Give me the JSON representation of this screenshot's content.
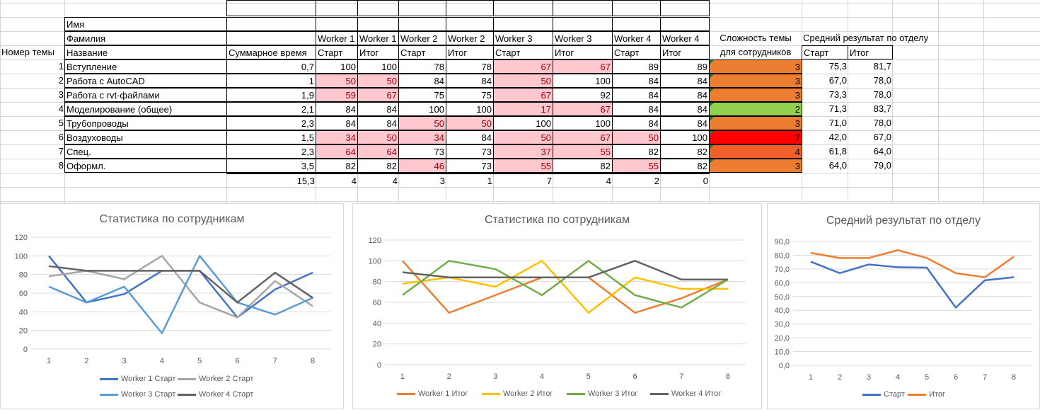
{
  "table": {
    "row_name_label": "Имя",
    "row_surname_label": "Фамилия",
    "col_topic_num": "Номер темы",
    "col_title": "Название",
    "col_total_time": "Суммарное время",
    "worker_headers": [
      "Worker 1",
      "Worker 1",
      "Worker 2",
      "Worker 2",
      "Worker 3",
      "Worker 3",
      "Worker 4",
      "Worker 4"
    ],
    "stage_headers": [
      "Старт",
      "Итог",
      "Старт",
      "Итог",
      "Старт",
      "Итог",
      "Старт",
      "Итог"
    ],
    "difficulty_header_1": "Сложность темы",
    "difficulty_header_2": "для сотрудников",
    "avg_header": "Средний результат по отделу",
    "avg_subheaders": [
      "Старт",
      "Итог"
    ],
    "rows": [
      {
        "num": "1",
        "title": "Вступление",
        "time": "0,7",
        "scores": [
          100,
          100,
          78,
          78,
          67,
          67,
          89,
          89
        ],
        "difficulty": "3",
        "avg": [
          "75,3",
          "81,7"
        ]
      },
      {
        "num": "2",
        "title": "Работа с AutoCAD",
        "time": "1",
        "scores": [
          50,
          50,
          84,
          84,
          50,
          100,
          84,
          84
        ],
        "difficulty": "3",
        "avg": [
          "67,0",
          "78,0"
        ]
      },
      {
        "num": "3",
        "title": "Работа с rvt-файлами",
        "time": "1,9",
        "scores": [
          59,
          67,
          75,
          75,
          67,
          92,
          84,
          84
        ],
        "difficulty": "3",
        "avg": [
          "73,3",
          "78,0"
        ]
      },
      {
        "num": "4",
        "title": "Моделирование (общее)",
        "time": "2,1",
        "scores": [
          84,
          84,
          100,
          100,
          17,
          67,
          84,
          84
        ],
        "difficulty": "2",
        "avg": [
          "71,3",
          "83,7"
        ]
      },
      {
        "num": "5",
        "title": "Трубопроводы",
        "time": "2,3",
        "scores": [
          84,
          84,
          50,
          50,
          100,
          100,
          84,
          84
        ],
        "difficulty": "3",
        "avg": [
          "71,0",
          "78,0"
        ]
      },
      {
        "num": "6",
        "title": "Воздуховоды",
        "time": "1,5",
        "scores": [
          34,
          50,
          34,
          84,
          50,
          67,
          50,
          100
        ],
        "difficulty": "7",
        "avg": [
          "42,0",
          "67,0"
        ]
      },
      {
        "num": "7",
        "title": "Спец.",
        "time": "2,3",
        "scores": [
          64,
          64,
          73,
          73,
          37,
          55,
          82,
          82
        ],
        "difficulty": "4",
        "avg": [
          "61,8",
          "64,0"
        ]
      },
      {
        "num": "8",
        "title": "Оформл.",
        "time": "3,5",
        "scores": [
          82,
          82,
          46,
          73,
          55,
          82,
          55,
          82
        ],
        "difficulty": "3",
        "avg": [
          "64,0",
          "79,0"
        ]
      }
    ],
    "totals": {
      "time": "15,3",
      "counts": [
        "4",
        "4",
        "3",
        "1",
        "7",
        "4",
        "2",
        "0"
      ]
    },
    "difficulty_colors": {
      "2": "#92d050",
      "3": "#ed7d31",
      "4": "#f0602a",
      "7": "#ff0000"
    },
    "low_threshold": 70
  },
  "chart_data": [
    {
      "type": "line",
      "title": "Статистика по сотрудникам",
      "categories": [
        "1",
        "2",
        "3",
        "4",
        "5",
        "6",
        "7",
        "8"
      ],
      "ylim": [
        0,
        120
      ],
      "yticks": [
        "0",
        "20",
        "40",
        "60",
        "80",
        "100",
        "120"
      ],
      "series": [
        {
          "name": "Worker 1 Старт",
          "color": "#4472c4",
          "values": [
            100,
            50,
            59,
            84,
            84,
            34,
            64,
            82
          ]
        },
        {
          "name": "Worker 2 Старт",
          "color": "#a5a5a5",
          "values": [
            78,
            84,
            75,
            100,
            50,
            34,
            73,
            46
          ]
        },
        {
          "name": "Worker 3 Старт",
          "color": "#5b9bd5",
          "values": [
            67,
            50,
            67,
            17,
            100,
            50,
            37,
            55
          ]
        },
        {
          "name": "Worker 4 Старт",
          "color": "#636363",
          "values": [
            89,
            84,
            84,
            84,
            84,
            50,
            82,
            55
          ]
        }
      ]
    },
    {
      "type": "line",
      "title": "Статистика по сотрудникам",
      "categories": [
        "1",
        "2",
        "3",
        "4",
        "5",
        "6",
        "7",
        "8"
      ],
      "ylim": [
        0,
        120
      ],
      "yticks": [
        "0",
        "20",
        "40",
        "60",
        "80",
        "100",
        "120"
      ],
      "series": [
        {
          "name": "Worker 1 Итог",
          "color": "#ed7d31",
          "values": [
            100,
            50,
            67,
            84,
            84,
            50,
            64,
            82
          ]
        },
        {
          "name": "Worker 2 Итог",
          "color": "#ffc000",
          "values": [
            78,
            84,
            75,
            100,
            50,
            84,
            73,
            73
          ]
        },
        {
          "name": "Worker 3 Итог",
          "color": "#70ad47",
          "values": [
            67,
            100,
            92,
            67,
            100,
            67,
            55,
            82
          ]
        },
        {
          "name": "Worker 4 Итог",
          "color": "#636363",
          "values": [
            89,
            84,
            84,
            84,
            84,
            100,
            82,
            82
          ]
        }
      ]
    },
    {
      "type": "line",
      "title": "Средний результат по отделу",
      "categories": [
        "1",
        "2",
        "3",
        "4",
        "5",
        "6",
        "7",
        "8"
      ],
      "ylim": [
        0,
        90
      ],
      "yticks": [
        "0,0",
        "10,0",
        "20,0",
        "30,0",
        "40,0",
        "50,0",
        "60,0",
        "70,0",
        "80,0",
        "90,0"
      ],
      "series": [
        {
          "name": "Старт",
          "color": "#4472c4",
          "values": [
            75.3,
            67,
            73.3,
            71.3,
            71,
            42,
            61.8,
            64
          ]
        },
        {
          "name": "Итог",
          "color": "#ed7d31",
          "values": [
            81.7,
            78,
            78,
            83.7,
            78,
            67,
            64,
            79
          ]
        }
      ]
    }
  ]
}
